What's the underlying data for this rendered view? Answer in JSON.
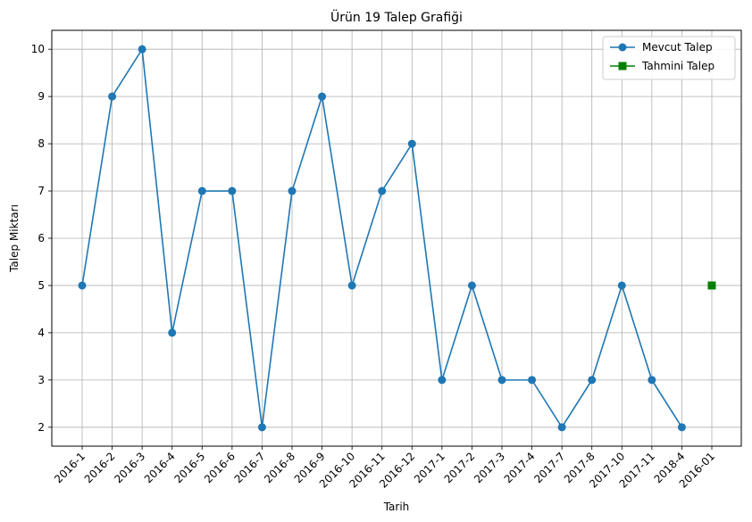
{
  "chart_data": {
    "type": "line",
    "title": "Ürün 19 Talep Grafiği",
    "xlabel": "Tarih",
    "ylabel": "Talep Miktarı",
    "categories": [
      "2016-1",
      "2016-2",
      "2016-3",
      "2016-4",
      "2016-5",
      "2016-6",
      "2016-7",
      "2016-8",
      "2016-9",
      "2016-10",
      "2016-11",
      "2016-12",
      "2017-1",
      "2017-2",
      "2017-3",
      "2017-4",
      "2017-7",
      "2017-8",
      "2017-10",
      "2017-11",
      "2018-4",
      "2016-01"
    ],
    "ylim": [
      1.6,
      10.4
    ],
    "yticks": [
      2,
      3,
      4,
      5,
      6,
      7,
      8,
      9,
      10
    ],
    "grid": true,
    "legend_position": "top-right",
    "series": [
      {
        "name": "Mevcut Talep",
        "color": "#1f77b4",
        "marker": "circle",
        "x": [
          "2016-1",
          "2016-2",
          "2016-3",
          "2016-4",
          "2016-5",
          "2016-6",
          "2016-7",
          "2016-8",
          "2016-9",
          "2016-10",
          "2016-11",
          "2016-12",
          "2017-1",
          "2017-2",
          "2017-3",
          "2017-4",
          "2017-7",
          "2017-8",
          "2017-10",
          "2017-11",
          "2018-4"
        ],
        "values": [
          5,
          9,
          10,
          4,
          7,
          7,
          2,
          7,
          9,
          5,
          7,
          8,
          3,
          5,
          3,
          3,
          2,
          3,
          5,
          3,
          2
        ]
      },
      {
        "name": "Tahmini Talep",
        "color": "#008000",
        "marker": "square",
        "x": [
          "2016-01"
        ],
        "values": [
          5
        ]
      }
    ]
  }
}
